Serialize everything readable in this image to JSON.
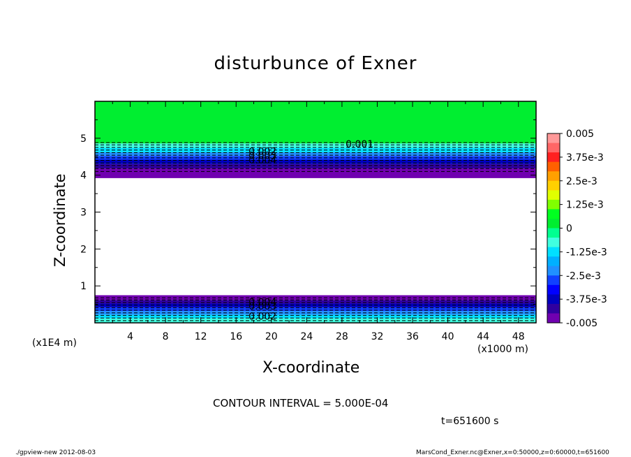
{
  "chart_data": {
    "type": "heatmap",
    "title": "disturbunce of Exner",
    "xlabel": "X-coordinate",
    "ylabel": "Z-coordinate",
    "x_unit": "(x1000 m)",
    "y_unit": "(x1E4 m)",
    "xlim": [
      0,
      50
    ],
    "ylim": [
      0,
      6
    ],
    "x_ticks": [
      4,
      8,
      12,
      16,
      20,
      24,
      28,
      32,
      36,
      40,
      44,
      48
    ],
    "y_ticks": [
      1,
      2,
      3,
      4,
      5
    ],
    "bands": [
      {
        "z_bottom": 0.0,
        "z_top": 0.12,
        "color": "#40ffe0"
      },
      {
        "z_bottom": 0.12,
        "z_top": 0.22,
        "color": "#00e0ff"
      },
      {
        "z_bottom": 0.22,
        "z_top": 0.32,
        "color": "#2090ff"
      },
      {
        "z_bottom": 0.32,
        "z_top": 0.42,
        "color": "#1040ff"
      },
      {
        "z_bottom": 0.42,
        "z_top": 0.52,
        "color": "#0000c0"
      },
      {
        "z_bottom": 0.52,
        "z_top": 0.62,
        "color": "#3000a0"
      },
      {
        "z_bottom": 0.62,
        "z_top": 0.75,
        "color": "#7000b0"
      },
      {
        "z_bottom": 0.75,
        "z_top": 3.92,
        "color": "#ffffff"
      },
      {
        "z_bottom": 3.92,
        "z_top": 4.18,
        "color": "#7000b0"
      },
      {
        "z_bottom": 4.18,
        "z_top": 4.3,
        "color": "#3000a0"
      },
      {
        "z_bottom": 4.3,
        "z_top": 4.42,
        "color": "#0000c0"
      },
      {
        "z_bottom": 4.42,
        "z_top": 4.52,
        "color": "#1040ff"
      },
      {
        "z_bottom": 4.52,
        "z_top": 4.62,
        "color": "#2090ff"
      },
      {
        "z_bottom": 4.62,
        "z_top": 4.74,
        "color": "#00e0ff"
      },
      {
        "z_bottom": 4.74,
        "z_top": 4.86,
        "color": "#40ffe0"
      },
      {
        "z_bottom": 4.86,
        "z_top": 6.0,
        "color": "#00ee30"
      }
    ],
    "contour_lines_z": [
      0.06,
      0.13,
      0.2,
      0.27,
      0.34,
      0.41,
      0.48,
      0.55,
      0.62,
      0.68,
      4.1,
      4.18,
      4.26,
      4.33,
      4.4,
      4.47,
      4.54,
      4.61,
      4.68,
      4.75,
      4.82,
      4.88
    ],
    "contour_labels": [
      {
        "text": "0.001",
        "x": 30,
        "z": 4.85
      },
      {
        "text": "0.002",
        "x": 19,
        "z": 4.65
      },
      {
        "text": "0.003",
        "x": 19,
        "z": 4.53
      },
      {
        "text": "0.004",
        "x": 19,
        "z": 4.41
      },
      {
        "text": "0.004",
        "x": 19,
        "z": 0.57
      },
      {
        "text": "0.003",
        "x": 19,
        "z": 0.45
      },
      {
        "text": "0.002",
        "x": 19,
        "z": 0.18
      }
    ],
    "colorbar": {
      "labels": [
        "0.005",
        "3.75e-3",
        "2.5e-3",
        "1.25e-3",
        "0",
        "-1.25e-3",
        "-2.5e-3",
        "-3.75e-3",
        "-0.005"
      ],
      "colors": [
        "#ff9999",
        "#ff6666",
        "#ff2020",
        "#ff6000",
        "#ffa000",
        "#ffd000",
        "#e0ff00",
        "#80ff00",
        "#00ff20",
        "#00ee30",
        "#00ff90",
        "#40ffe0",
        "#00e0ff",
        "#00b0ff",
        "#2090ff",
        "#1040ff",
        "#0000ff",
        "#0000c0",
        "#3000a0",
        "#7000b0"
      ]
    }
  },
  "contour_interval": "CONTOUR INTERVAL = 5.000E-04",
  "time_label": "t=651600 s",
  "footer_left": "./gpview-new   2012-08-03",
  "footer_right": "MarsCond_Exner.nc@Exner,x=0:50000,z=0:60000,t=651600"
}
